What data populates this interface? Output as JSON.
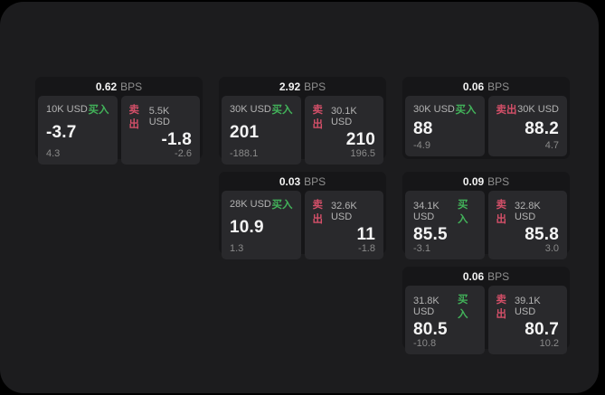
{
  "labels": {
    "bps_unit": "BPS",
    "buy": "买入",
    "sell": "卖出"
  },
  "colors": {
    "buy_green": "#42b35a",
    "sell_red": "#d34f68",
    "panel_bg": "#1c1c1e",
    "card_bg": "#161618",
    "tile_bg": "#29292c"
  },
  "cards": [
    {
      "bps": "0.62",
      "col": 1,
      "row": 1,
      "buy": {
        "amount": "10K USD",
        "value": "-3.7",
        "sub": "4.3"
      },
      "sell": {
        "amount": "5.5K USD",
        "value": "-1.8",
        "sub": "-2.6"
      }
    },
    {
      "bps": "2.92",
      "col": 2,
      "row": 1,
      "buy": {
        "amount": "30K USD",
        "value": "201",
        "sub": "-188.1"
      },
      "sell": {
        "amount": "30.1K USD",
        "value": "210",
        "sub": "196.5"
      }
    },
    {
      "bps": "0.06",
      "col": 3,
      "row": 1,
      "buy": {
        "amount": "30K USD",
        "value": "88",
        "sub": "-4.9"
      },
      "sell": {
        "amount": "30K USD",
        "value": "88.2",
        "sub": "4.7"
      }
    },
    {
      "bps": "0.03",
      "col": 2,
      "row": 2,
      "buy": {
        "amount": "28K USD",
        "value": "10.9",
        "sub": "1.3"
      },
      "sell": {
        "amount": "32.6K USD",
        "value": "11",
        "sub": "-1.8"
      }
    },
    {
      "bps": "0.09",
      "col": 3,
      "row": 2,
      "buy": {
        "amount": "34.1K USD",
        "value": "85.5",
        "sub": "-3.1"
      },
      "sell": {
        "amount": "32.8K USD",
        "value": "85.8",
        "sub": "3.0"
      }
    },
    {
      "bps": "0.06",
      "col": 3,
      "row": 3,
      "buy": {
        "amount": "31.8K USD",
        "value": "80.5",
        "sub": "-10.8"
      },
      "sell": {
        "amount": "39.1K USD",
        "value": "80.7",
        "sub": "10.2"
      }
    }
  ]
}
